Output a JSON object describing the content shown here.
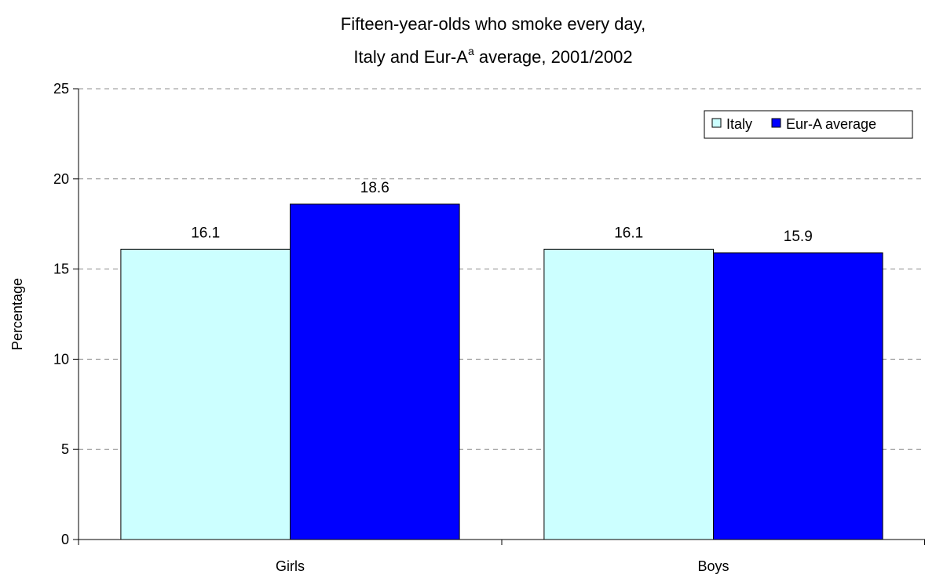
{
  "chart_data": {
    "type": "bar",
    "title_line1": "Fifteen-year-olds who smoke every day,",
    "title_line2_a": "Italy and Eur-A",
    "title_line2_sup": "a",
    "title_line2_b": " average, 2001/2002",
    "xlabel": "",
    "ylabel": "Percentage",
    "ylim": [
      0,
      25
    ],
    "yticks": [
      "0",
      "5",
      "10",
      "15",
      "20",
      "25"
    ],
    "grid": true,
    "legend_position": "top-right",
    "categories": [
      "Girls",
      "Boys"
    ],
    "series": [
      {
        "name": "Italy",
        "values": [
          16.1,
          16.1
        ],
        "color": "#CCFFFF",
        "labels": [
          "16.1",
          "16.1"
        ]
      },
      {
        "name": "Eur-A average",
        "values": [
          18.6,
          15.9
        ],
        "color": "#0000FF",
        "labels": [
          "18.6",
          "15.9"
        ]
      }
    ]
  }
}
